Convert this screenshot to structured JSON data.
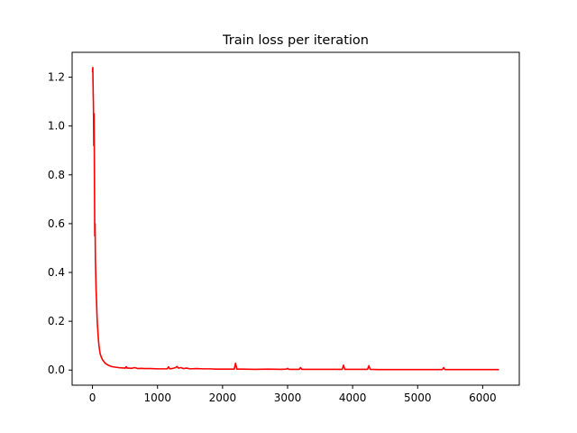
{
  "chart_data": {
    "type": "line",
    "title": "Train loss per iteration",
    "xlabel": "",
    "ylabel": "",
    "xlim": [
      -313,
      6563
    ],
    "ylim": [
      -0.062,
      1.302
    ],
    "xticks": [
      0,
      1000,
      2000,
      3000,
      4000,
      5000,
      6000
    ],
    "xtick_labels": [
      "0",
      "1000",
      "2000",
      "3000",
      "4000",
      "5000",
      "6000"
    ],
    "yticks": [
      0.0,
      0.2,
      0.4,
      0.6,
      0.8,
      1.0,
      1.2
    ],
    "ytick_labels": [
      "0.0",
      "0.2",
      "0.4",
      "0.6",
      "0.8",
      "1.0",
      "1.2"
    ],
    "grid": false,
    "legend": "none",
    "series": [
      {
        "color": "#ff0000",
        "x": [
          0,
          5,
          10,
          15,
          20,
          25,
          30,
          35,
          40,
          45,
          50,
          55,
          60,
          65,
          70,
          75,
          80,
          90,
          100,
          110,
          120,
          140,
          160,
          180,
          200,
          230,
          260,
          300,
          350,
          400,
          450,
          500,
          520,
          530,
          560,
          600,
          650,
          700,
          750,
          800,
          900,
          1000,
          1100,
          1150,
          1170,
          1190,
          1220,
          1280,
          1300,
          1320,
          1360,
          1400,
          1450,
          1500,
          1600,
          1700,
          1800,
          1900,
          2000,
          2100,
          2180,
          2200,
          2220,
          2300,
          2500,
          2700,
          2900,
          2980,
          3000,
          3020,
          3100,
          3180,
          3200,
          3220,
          3400,
          3600,
          3800,
          3840,
          3860,
          3880,
          4000,
          4200,
          4230,
          4250,
          4270,
          4400,
          4600,
          4800,
          5000,
          5200,
          5380,
          5400,
          5420,
          5600,
          5800,
          6000,
          6200,
          6250
        ],
        "y": [
          1.22,
          1.24,
          1.15,
          1.08,
          0.92,
          1.05,
          0.8,
          0.55,
          0.6,
          0.45,
          0.4,
          0.33,
          0.3,
          0.26,
          0.22,
          0.19,
          0.17,
          0.13,
          0.1,
          0.08,
          0.065,
          0.05,
          0.04,
          0.033,
          0.027,
          0.022,
          0.018,
          0.014,
          0.012,
          0.01,
          0.009,
          0.008,
          0.014,
          0.008,
          0.008,
          0.007,
          0.01,
          0.006,
          0.007,
          0.006,
          0.006,
          0.005,
          0.005,
          0.005,
          0.013,
          0.005,
          0.006,
          0.01,
          0.015,
          0.008,
          0.01,
          0.006,
          0.008,
          0.005,
          0.006,
          0.005,
          0.005,
          0.004,
          0.004,
          0.004,
          0.004,
          0.028,
          0.004,
          0.004,
          0.003,
          0.004,
          0.003,
          0.004,
          0.007,
          0.003,
          0.003,
          0.003,
          0.01,
          0.003,
          0.003,
          0.003,
          0.003,
          0.003,
          0.02,
          0.003,
          0.003,
          0.003,
          0.003,
          0.018,
          0.003,
          0.002,
          0.002,
          0.002,
          0.002,
          0.002,
          0.002,
          0.01,
          0.002,
          0.002,
          0.002,
          0.002,
          0.002,
          0.002
        ]
      }
    ]
  }
}
